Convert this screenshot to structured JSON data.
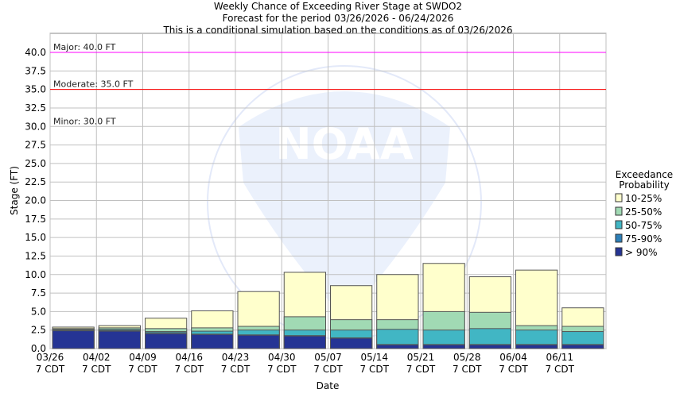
{
  "chart_data": {
    "type": "bar",
    "stacked": true,
    "title": [
      "Weekly Chance of Exceeding River Stage at SWDO2",
      "Forecast for the period 03/26/2026 - 06/24/2026",
      "This is a conditional simulation based on the conditions as of 03/26/2026"
    ],
    "xlabel": "Date",
    "ylabel": "Stage (FT)",
    "ylim": [
      0,
      42.5
    ],
    "yticks": [
      "0.0",
      "2.5",
      "5.0",
      "7.5",
      "10.0",
      "12.5",
      "15.0",
      "17.5",
      "20.0",
      "22.5",
      "25.0",
      "27.5",
      "30.0",
      "32.5",
      "35.0",
      "37.5",
      "40.0"
    ],
    "categories": [
      "03/26",
      "04/02",
      "04/09",
      "04/16",
      "04/23",
      "04/30",
      "05/07",
      "05/14",
      "05/21",
      "05/28",
      "06/04",
      "06/11"
    ],
    "tick_sublabel": "7 CDT",
    "grid": true,
    "legend": {
      "title": [
        "Exceedance",
        "Probability"
      ],
      "placement": "right"
    },
    "series": [
      {
        "name": "> 90%",
        "color": "#253494",
        "values": [
          2.4,
          2.35,
          2.0,
          1.9,
          1.8,
          1.7,
          1.4,
          0.5,
          0.5,
          0.5,
          0.5,
          0.5
        ]
      },
      {
        "name": "75-90%",
        "color": "#2c7fb8",
        "values": [
          2.5,
          2.45,
          2.15,
          1.95,
          1.85,
          1.75,
          1.45,
          0.55,
          0.55,
          0.55,
          0.55,
          0.55
        ]
      },
      {
        "name": "50-75%",
        "color": "#41b6c4",
        "values": [
          2.6,
          2.6,
          2.3,
          2.35,
          2.5,
          2.5,
          2.5,
          2.6,
          2.5,
          2.7,
          2.5,
          2.3
        ]
      },
      {
        "name": "25-50%",
        "color": "#a1dab4",
        "values": [
          2.7,
          2.8,
          2.7,
          2.8,
          3.0,
          4.3,
          3.9,
          3.9,
          5.0,
          4.9,
          3.1,
          3.0
        ]
      },
      {
        "name": "10-25%",
        "color": "#ffffcc",
        "values": [
          2.9,
          3.1,
          4.1,
          5.1,
          7.7,
          10.3,
          8.5,
          10.0,
          11.5,
          9.7,
          10.6,
          5.5
        ]
      }
    ],
    "thresholds": [
      {
        "label": "Major: 40.0 FT",
        "value": 40.0,
        "color": "#ff00ff"
      },
      {
        "label": "Moderate: 35.0 FT",
        "value": 35.0,
        "color": "#ff0000"
      },
      {
        "label": "Minor: 30.0 FT",
        "value": 30.0,
        "color": "#ffff00"
      }
    ],
    "watermark": "NOAA"
  }
}
